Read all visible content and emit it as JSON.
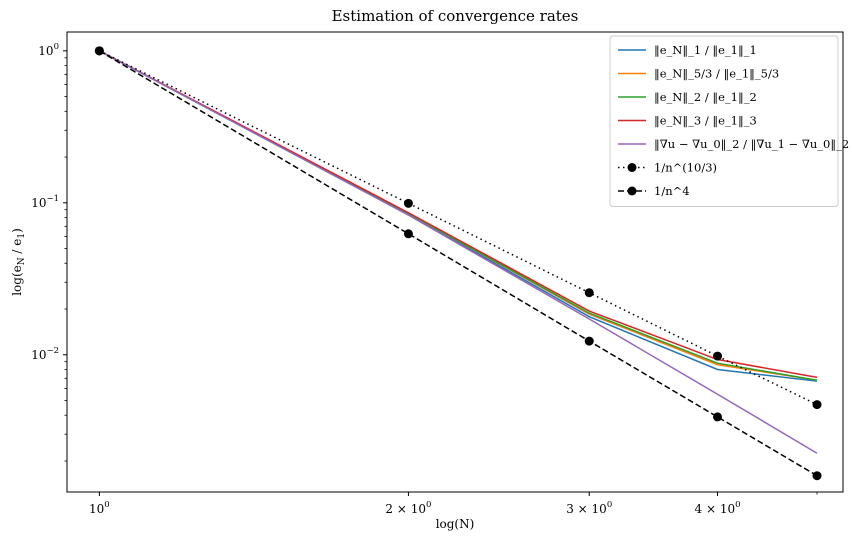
{
  "chart_data": {
    "type": "line",
    "title": "Estimation of convergence rates",
    "xlabel": "log(N)",
    "ylabel": "log(e_N / e_1)",
    "xscale": "log",
    "yscale": "log",
    "xlim": [
      0.93,
      5.3
    ],
    "ylim": [
      0.00125,
      1.33
    ],
    "x": [
      1,
      2,
      3,
      4,
      5
    ],
    "xticks": [
      {
        "value": 1,
        "label": "10^0"
      },
      {
        "value": 2,
        "label": "2 × 10^0"
      },
      {
        "value": 3,
        "label": "3 × 10^0"
      },
      {
        "value": 4,
        "label": "4 × 10^0"
      }
    ],
    "yticks": [
      {
        "value": 1,
        "label": "10^0"
      },
      {
        "value": 0.1,
        "label": "10^-1"
      },
      {
        "value": 0.01,
        "label": "10^-2"
      }
    ],
    "legend_position": "top-right",
    "series": [
      {
        "name": "‖e_N‖_1 / ‖e_1‖_1",
        "color": "#1f77b4",
        "style": "solid",
        "marker": "none",
        "values": [
          1,
          0.084,
          0.0178,
          0.008,
          0.0067
        ]
      },
      {
        "name": "‖e_N‖_5/3 / ‖e_1‖_5/3",
        "color": "#ff7f0e",
        "style": "solid",
        "marker": "none",
        "values": [
          1,
          0.085,
          0.0185,
          0.0086,
          0.0068
        ]
      },
      {
        "name": "‖e_N‖_2 / ‖e_1‖_2",
        "color": "#2ca02c",
        "style": "solid",
        "marker": "none",
        "values": [
          1,
          0.085,
          0.0188,
          0.0088,
          0.0068
        ]
      },
      {
        "name": "‖e_N‖_3 / ‖e_1‖_3",
        "color": "#d62728",
        "style": "solid",
        "marker": "none",
        "values": [
          1,
          0.086,
          0.0194,
          0.0093,
          0.0071
        ]
      },
      {
        "name": "‖∇u − ∇u_0‖_2 / ‖∇u_1 − ∇u_0‖_2",
        "color": "#9467bd",
        "style": "solid",
        "marker": "none",
        "values": [
          1,
          0.083,
          0.0172,
          0.0055,
          0.00225
        ]
      },
      {
        "name": "1/n^(10/3)",
        "color": "#000000",
        "style": "dotted",
        "marker": "circle",
        "values": [
          1,
          0.0992,
          0.0256,
          0.0098,
          0.0047
        ]
      },
      {
        "name": "1/n^4",
        "color": "#000000",
        "style": "dashed",
        "marker": "circle",
        "values": [
          1,
          0.0625,
          0.0123,
          0.0039,
          0.0016
        ]
      }
    ]
  }
}
